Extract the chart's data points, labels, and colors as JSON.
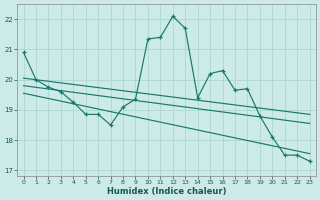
{
  "xlabel": "Humidex (Indice chaleur)",
  "bg_color": "#cceae8",
  "grid_color": "#aad4d0",
  "line_color": "#1a7868",
  "xlim": [
    -0.5,
    23.5
  ],
  "ylim": [
    16.8,
    22.5
  ],
  "yticks": [
    17,
    18,
    19,
    20,
    21,
    22
  ],
  "xticks": [
    0,
    1,
    2,
    3,
    4,
    5,
    6,
    7,
    8,
    9,
    10,
    11,
    12,
    13,
    14,
    15,
    16,
    17,
    18,
    19,
    20,
    21,
    22,
    23
  ],
  "line_main": {
    "x": [
      0,
      1,
      2,
      3,
      4,
      5,
      6,
      7,
      8,
      9,
      10,
      11,
      12,
      13,
      14,
      15,
      16,
      17,
      18,
      19,
      20,
      21,
      22,
      23
    ],
    "y": [
      20.9,
      20.0,
      19.75,
      19.6,
      19.25,
      18.85,
      18.85,
      18.5,
      19.1,
      19.35,
      21.35,
      21.4,
      22.1,
      21.7,
      19.4,
      20.2,
      20.3,
      19.65,
      19.7,
      18.8,
      18.1,
      17.5,
      17.5,
      17.3
    ]
  },
  "line_trend1": {
    "x": [
      0,
      23
    ],
    "y": [
      20.05,
      18.85
    ]
  },
  "line_trend2": {
    "x": [
      0,
      23
    ],
    "y": [
      19.8,
      18.55
    ]
  },
  "line_trend3": {
    "x": [
      0,
      23
    ],
    "y": [
      19.55,
      17.55
    ]
  },
  "line_jagged2": {
    "x": [
      1,
      2,
      3,
      4,
      5,
      6,
      7,
      8,
      9,
      10,
      11,
      12,
      13,
      14,
      15,
      16,
      17,
      18,
      19,
      20,
      21,
      22,
      23
    ],
    "y": [
      19.75,
      19.65,
      19.6,
      19.25,
      18.85,
      18.85,
      18.5,
      19.1,
      19.35,
      19.4,
      19.35,
      19.3,
      19.25,
      19.2,
      19.15,
      19.1,
      19.05,
      19.0,
      18.95,
      18.1,
      17.5,
      17.5,
      17.3
    ]
  }
}
